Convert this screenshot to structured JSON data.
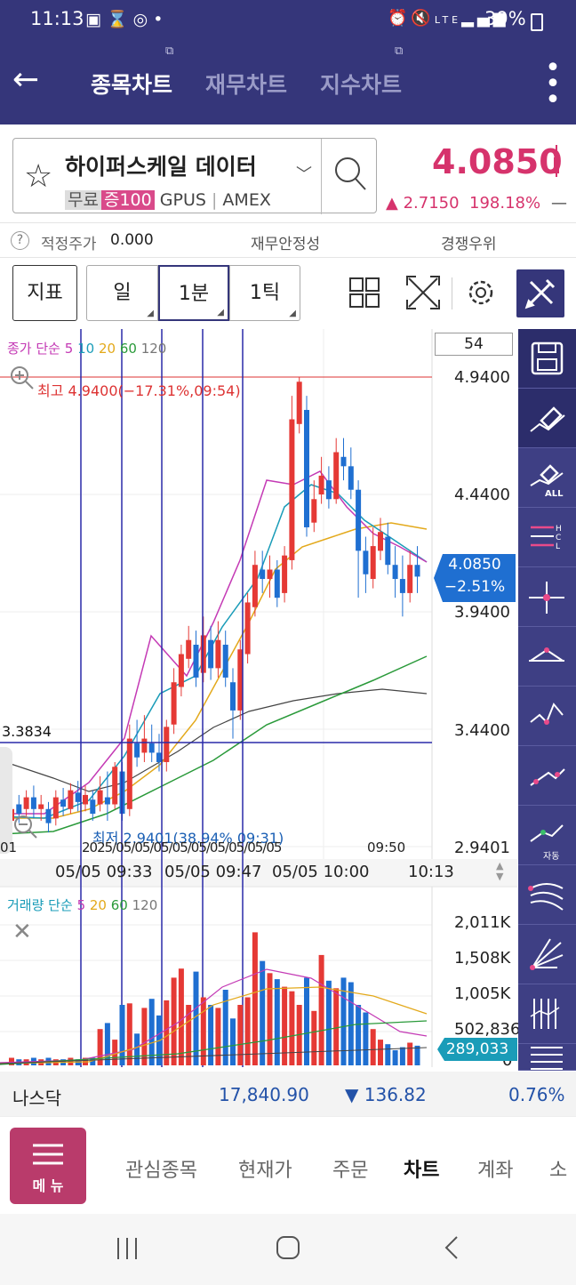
{
  "status": {
    "time": "11:13",
    "battery": "39%",
    "network": "LTE"
  },
  "appbar": {
    "tabs": [
      {
        "label": "종목차트",
        "active": true
      },
      {
        "label": "재무차트",
        "active": false
      },
      {
        "label": "지수차트",
        "active": false
      }
    ]
  },
  "stock": {
    "name": "하이퍼스케일 데이터",
    "tag_free": "무료",
    "tag_margin": "증100",
    "ticker": "GPUS",
    "exchange": "AMEX",
    "price": "4.0850",
    "change": "▲ 2.7150",
    "change_pct": "198.18%",
    "dash": "—"
  },
  "info": {
    "fair_label": "적정주가",
    "fair_value": "0.000",
    "stability": "재무안정성",
    "rank": "경쟁우위"
  },
  "toolbar": {
    "indicator": "지표",
    "day": "일",
    "minute": "1분",
    "tick": "1틱"
  },
  "chart": {
    "ma_label": "종가 단순",
    "ma_periods": [
      "5",
      "10",
      "20",
      "60",
      "120"
    ],
    "count_box": "54",
    "high_label": "최고 4.9400(−17.31%,09:54)",
    "low_label": "최저 2.9401(38.94% 09:31)",
    "crosshair_value": "3.3834",
    "y_ticks": [
      "4.9400",
      "4.4400",
      "3.9400",
      "3.4400",
      "2.9401"
    ],
    "current_price": "4.0850",
    "current_pct": "−2.51%",
    "left_edge_label": "01",
    "overlap_dates": "2025/05/05/05/05/05/05/05/05/05",
    "overlap_tail": "09:50",
    "x_ticks": [
      "05/05 09:33",
      "05/05 09:47",
      "05/05 10:00",
      "10:13"
    ],
    "vol_label": "거래량 단순",
    "vol_periods": [
      "5",
      "20",
      "60",
      "120"
    ],
    "vol_ticks": [
      "2,011K",
      "1,508K",
      "1,005K",
      "502,836",
      "0"
    ],
    "vol_current": "289,033"
  },
  "chart_data": {
    "type": "candlestick",
    "ylim": [
      2.9401,
      4.94
    ],
    "high": 4.94,
    "low": 2.9401,
    "current": 4.085,
    "volume_ylim": [
      0,
      2011000
    ],
    "volume_current": 289033
  },
  "sidebar_icons": [
    "save-icon",
    "eraser-icon",
    "eraser-all-icon",
    "hcl-line-icon",
    "crosshair-line-icon",
    "trend-triangle-icon",
    "valley-line-icon",
    "trend-line-icon",
    "auto-trend-icon",
    "fan-line-icon",
    "fan-angle-icon",
    "vertical-lines-icon",
    "horizontal-lines-icon"
  ],
  "sidebar_auto": "자동",
  "sidebar_all": "ALL",
  "index": {
    "name": "나스닥",
    "value": "17,840.90",
    "change": "▼ 136.82",
    "pct": "0.76%"
  },
  "bottomnav": {
    "menu": "메 뉴",
    "items": [
      {
        "label": "관심종목",
        "active": false
      },
      {
        "label": "현재가",
        "active": false
      },
      {
        "label": "주문",
        "active": false
      },
      {
        "label": "차트",
        "active": true
      },
      {
        "label": "계좌",
        "active": false
      },
      {
        "label": "소",
        "active": false
      }
    ]
  }
}
